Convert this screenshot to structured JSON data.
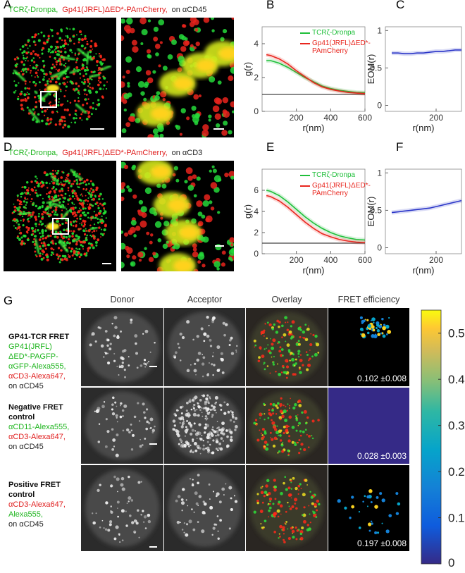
{
  "figure": {
    "panel_labels": [
      "A",
      "B",
      "C",
      "D",
      "E",
      "F",
      "G"
    ],
    "row_a_caption": [
      {
        "text": "TCRζ-Dronpa,",
        "color": "#1fb51f"
      },
      {
        "text": "Gp41(JRFL)ΔED*-PAmCherry,",
        "color": "#e01e1e"
      },
      {
        "text": "on αCD45",
        "color": "#222222"
      }
    ],
    "row_d_caption": [
      {
        "text": "TCRζ-Dronpa,",
        "color": "#1fb51f"
      },
      {
        "text": "Gp41(JRFL)ΔED*-PAmCherry,",
        "color": "#e01e1e"
      },
      {
        "text": "on αCD3",
        "color": "#222222"
      }
    ]
  },
  "chart_data": [
    {
      "type": "line",
      "xlabel": "r(nm)",
      "ylabel": "g(r)",
      "x": [
        25,
        50,
        100,
        150,
        200,
        250,
        300,
        350,
        400,
        450,
        500,
        550,
        600
      ],
      "xlim": [
        0,
        600
      ],
      "xticks": [
        200,
        400,
        600
      ],
      "ylim": [
        0,
        5
      ],
      "yticks": [
        0,
        2,
        4
      ],
      "reference_y": 1,
      "legend": "upper right",
      "series": [
        {
          "name": "TCRζ-Dronpa",
          "color": "#1fbf3a",
          "values": [
            3.0,
            3.0,
            2.85,
            2.6,
            2.3,
            2.0,
            1.75,
            1.5,
            1.35,
            1.25,
            1.18,
            1.12,
            1.1
          ]
        },
        {
          "name": "Gp41(JRFL)ΔED*-PAmCherry",
          "color": "#e8261e",
          "values": [
            3.35,
            3.3,
            3.1,
            2.8,
            2.4,
            2.05,
            1.7,
            1.45,
            1.3,
            1.2,
            1.12,
            1.08,
            1.05
          ]
        }
      ]
    },
    {
      "type": "line",
      "xlabel": "r(nm)",
      "ylabel": "EOM(r)",
      "x": [
        25,
        50,
        75,
        100,
        125,
        150,
        175,
        200,
        225,
        250,
        275,
        300
      ],
      "xlim": [
        0,
        300
      ],
      "xticks": [
        200
      ],
      "ylim": [
        -0.08,
        1.05
      ],
      "yticks": [
        0,
        0.5,
        1
      ],
      "series": [
        {
          "color": "#2a35c8",
          "values": [
            0.7,
            0.7,
            0.69,
            0.69,
            0.7,
            0.7,
            0.71,
            0.72,
            0.72,
            0.73,
            0.74,
            0.74
          ]
        }
      ]
    },
    {
      "type": "line",
      "xlabel": "r(nm)",
      "ylabel": "g(r)",
      "x": [
        25,
        50,
        100,
        150,
        200,
        250,
        300,
        350,
        400,
        450,
        500,
        550,
        600
      ],
      "xlim": [
        0,
        600
      ],
      "xticks": [
        200,
        400,
        600
      ],
      "ylim": [
        0,
        8
      ],
      "yticks": [
        0,
        2,
        4,
        6
      ],
      "reference_y": 1,
      "legend": "upper right",
      "series": [
        {
          "name": "TCRζ-Dronpa",
          "color": "#1fbf3a",
          "values": [
            6.0,
            5.9,
            5.5,
            4.9,
            4.2,
            3.5,
            2.9,
            2.4,
            2.0,
            1.7,
            1.5,
            1.35,
            1.3
          ]
        },
        {
          "name": "Gp41(JRFL)ΔED*-PAmCherry",
          "color": "#e8261e",
          "values": [
            5.5,
            5.4,
            5.0,
            4.4,
            3.7,
            3.0,
            2.4,
            1.9,
            1.6,
            1.35,
            1.2,
            1.1,
            1.05
          ]
        }
      ]
    },
    {
      "type": "line",
      "xlabel": "r(nm)",
      "ylabel": "EOM(r)",
      "x": [
        25,
        50,
        75,
        100,
        125,
        150,
        175,
        200,
        225,
        250,
        275,
        300
      ],
      "xlim": [
        0,
        300
      ],
      "xticks": [
        200
      ],
      "ylim": [
        -0.08,
        1.05
      ],
      "yticks": [
        0,
        0.5,
        1
      ],
      "series": [
        {
          "color": "#2a35c8",
          "values": [
            0.47,
            0.48,
            0.49,
            0.5,
            0.51,
            0.52,
            0.53,
            0.55,
            0.57,
            0.59,
            0.61,
            0.63
          ]
        }
      ]
    }
  ],
  "panel_g": {
    "columns": [
      "Donor",
      "Acceptor",
      "Overlay",
      "FRET efficiency"
    ],
    "rows": [
      {
        "label_lines": [
          {
            "text": "GP41-TCR FRET",
            "color": "#111111",
            "bold": true
          },
          {
            "text": "GP41(JRFL)",
            "color": "#1fb51f"
          },
          {
            "text": "ΔED*-PAGFP-",
            "color": "#1fb51f"
          },
          {
            "text": "αGFP-Alexa555,",
            "color": "#1fb51f"
          },
          {
            "text": "αCD3-Alexa647,",
            "color": "#e01e1e"
          },
          {
            "text": "on αCD45",
            "color": "#222222"
          }
        ],
        "efficiency": "0.102 ±0.008"
      },
      {
        "label_lines": [
          {
            "text": "Negative FRET",
            "color": "#111111",
            "bold": true
          },
          {
            "text": "control",
            "color": "#111111",
            "bold": true
          },
          {
            "text": "αCD11-Alexa555,",
            "color": "#1fb51f"
          },
          {
            "text": "αCD3-Alexa647,",
            "color": "#e01e1e"
          },
          {
            "text": "on αCD45",
            "color": "#222222"
          }
        ],
        "efficiency": "0.028 ±0.003"
      },
      {
        "label_lines": [
          {
            "text": "Positive FRET",
            "color": "#111111",
            "bold": true
          },
          {
            "text": "control",
            "color": "#111111",
            "bold": true
          },
          {
            "text": "αCD3-Alexa647,",
            "color": "#e01e1e"
          },
          {
            "text": "Alexa555,",
            "color": "#1fb51f"
          },
          {
            "text": "on αCD45",
            "color": "#222222"
          }
        ],
        "efficiency": "0.197 ±0.008"
      }
    ],
    "colorbar": {
      "lim": [
        0,
        0.55
      ],
      "ticks": [
        0,
        0.1,
        0.2,
        0.3,
        0.4,
        0.5
      ]
    }
  }
}
